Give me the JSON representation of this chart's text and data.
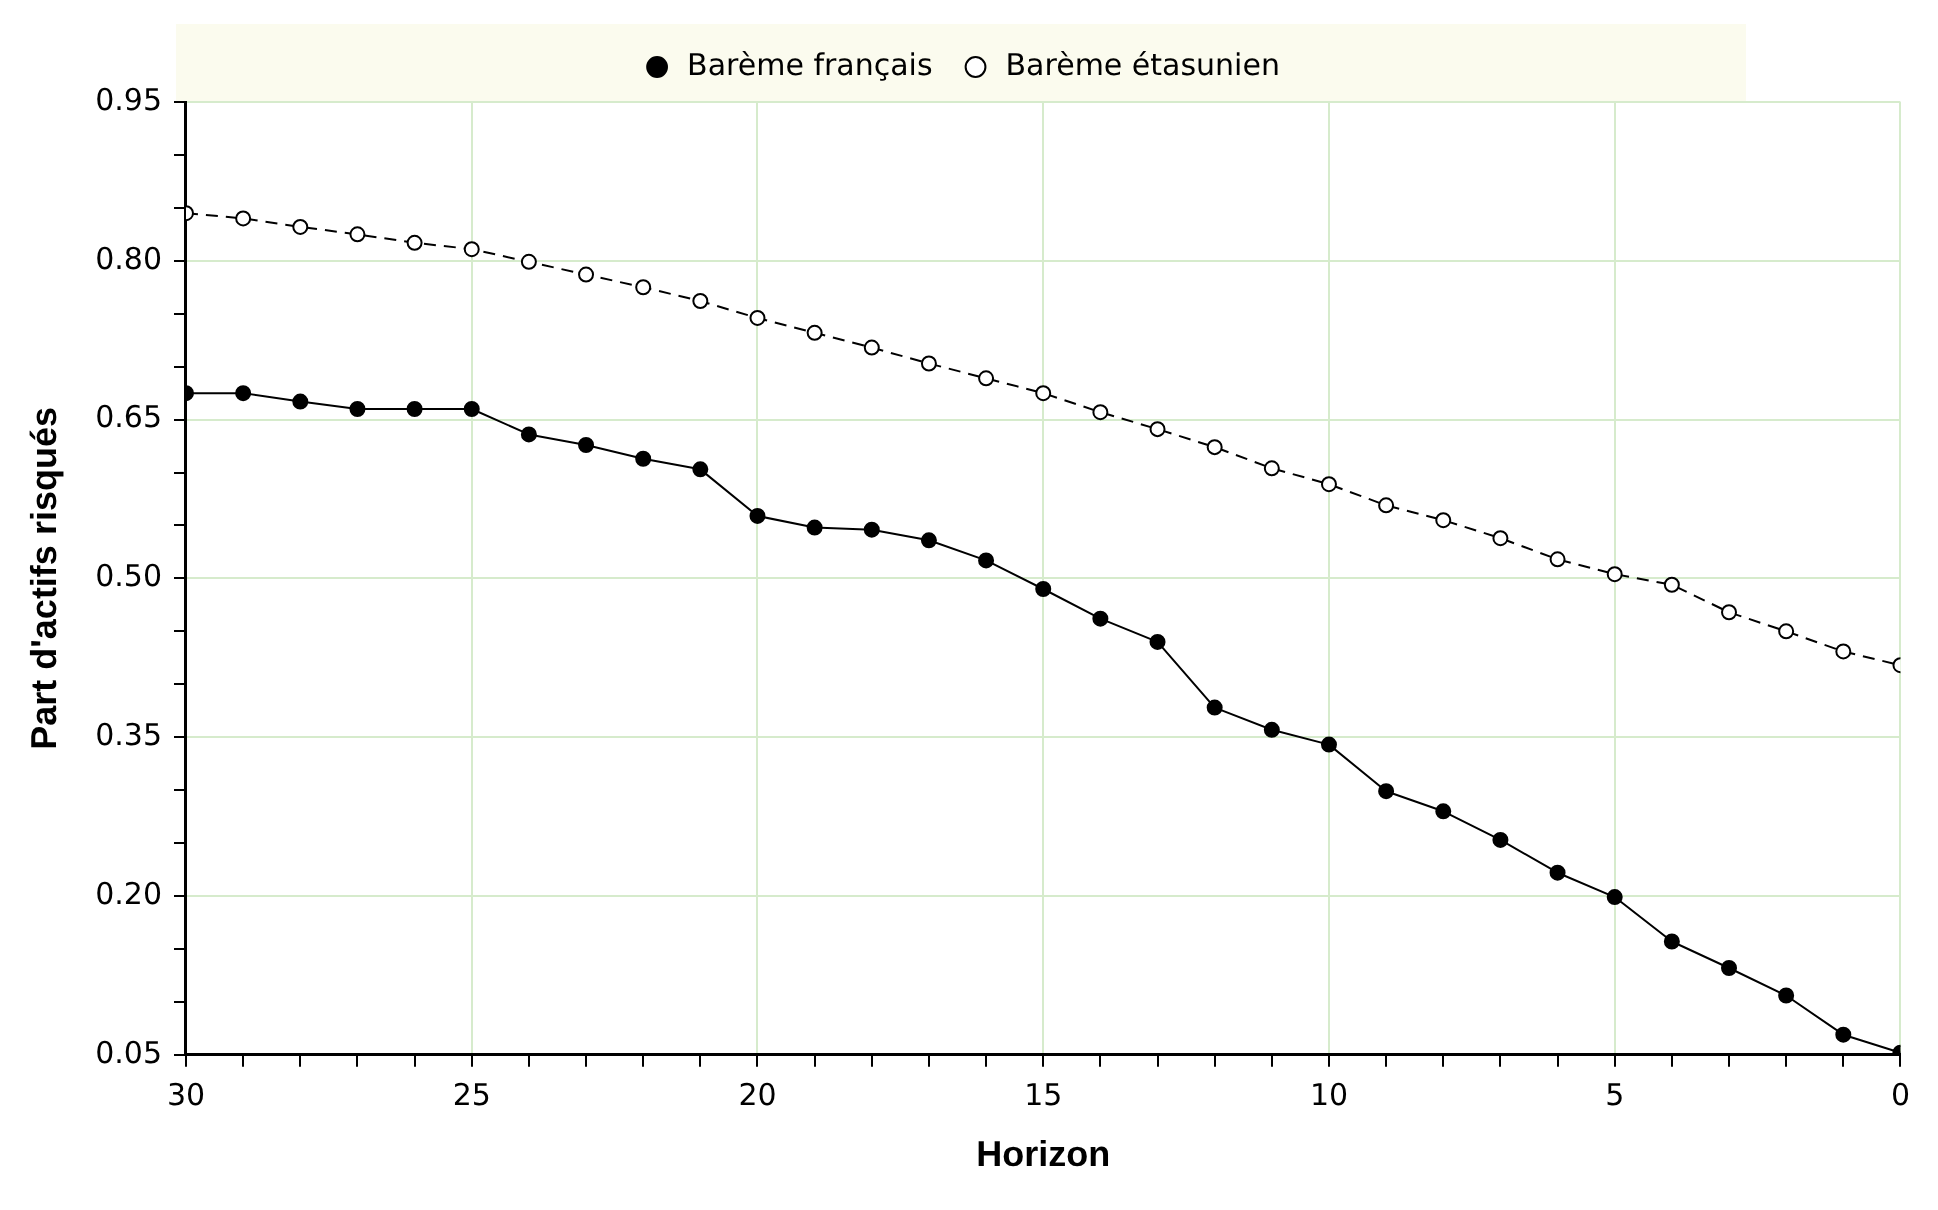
{
  "chart_data": {
    "type": "line",
    "xlabel": "Horizon",
    "ylabel": "Part d'actifs risqués",
    "x": [
      30,
      29,
      28,
      27,
      26,
      25,
      24,
      23,
      22,
      21,
      20,
      19,
      18,
      17,
      16,
      15,
      14,
      13,
      12,
      11,
      10,
      9,
      8,
      7,
      6,
      5,
      4,
      3,
      2,
      1,
      0
    ],
    "series": [
      {
        "name": "Barème français",
        "color": "#000000",
        "line_style": "solid",
        "values": [
          0.675,
          0.675,
          0.667,
          0.66,
          0.66,
          0.66,
          0.636,
          0.626,
          0.613,
          0.603,
          0.559,
          0.548,
          0.546,
          0.536,
          0.517,
          0.49,
          0.462,
          0.44,
          0.378,
          0.357,
          0.343,
          0.299,
          0.28,
          0.253,
          0.222,
          0.199,
          0.157,
          0.132,
          0.106,
          0.069,
          0.052
        ]
      },
      {
        "name": "Barème étasunien",
        "color": "#000000",
        "line_style": "dashed",
        "values": [
          0.845,
          0.84,
          0.832,
          0.825,
          0.817,
          0.811,
          0.799,
          0.787,
          0.775,
          0.762,
          0.746,
          0.732,
          0.718,
          0.703,
          0.689,
          0.675,
          0.657,
          0.641,
          0.624,
          0.604,
          0.589,
          0.569,
          0.555,
          0.538,
          0.518,
          0.504,
          0.494,
          0.468,
          0.45,
          0.431,
          0.418
        ]
      }
    ],
    "xlim": [
      30,
      0
    ],
    "xticks": [
      30,
      {
        "value": 29,
        "label": null
      },
      {
        "value": 28,
        "label": null
      },
      {
        "value": 27,
        "label": null
      },
      {
        "value": 26,
        "label": null
      },
      25,
      {
        "value": 24,
        "label": null
      },
      {
        "value": 23,
        "label": null
      },
      {
        "value": 22,
        "label": null
      },
      {
        "value": 21,
        "label": null
      },
      20,
      {
        "value": 19,
        "label": null
      },
      {
        "value": 18,
        "label": null
      },
      {
        "value": 17,
        "label": null
      },
      {
        "value": 16,
        "label": null
      },
      15,
      {
        "value": 14,
        "label": null
      },
      {
        "value": 13,
        "label": null
      },
      {
        "value": 12,
        "label": null
      },
      {
        "value": 11,
        "label": null
      },
      10,
      {
        "value": 9,
        "label": null
      },
      {
        "value": 8,
        "label": null
      },
      {
        "value": 7,
        "label": null
      },
      {
        "value": 6,
        "label": null
      },
      5,
      {
        "value": 4,
        "label": null
      },
      {
        "value": 3,
        "label": null
      },
      {
        "value": 2,
        "label": null
      },
      {
        "value": 1,
        "label": null
      },
      0
    ],
    "ylim": [
      0.05,
      0.95
    ],
    "yticks": [
      {
        "value": 0.05,
        "label": "0.05"
      },
      {
        "value": 0.1,
        "label": null
      },
      {
        "value": 0.15,
        "label": null
      },
      {
        "value": 0.2,
        "label": "0.20"
      },
      {
        "value": 0.25,
        "label": null
      },
      {
        "value": 0.3,
        "label": null
      },
      {
        "value": 0.35,
        "label": "0.35"
      },
      {
        "value": 0.4,
        "label": null
      },
      {
        "value": 0.45,
        "label": null
      },
      {
        "value": 0.5,
        "label": "0.50"
      },
      {
        "value": 0.55,
        "label": null
      },
      {
        "value": 0.6,
        "label": null
      },
      {
        "value": 0.65,
        "label": "0.65"
      },
      {
        "value": 0.7,
        "label": null
      },
      {
        "value": 0.75,
        "label": null
      },
      {
        "value": 0.8,
        "label": "0.80"
      },
      {
        "value": 0.85,
        "label": null
      },
      {
        "value": 0.9,
        "label": null
      },
      {
        "value": 0.95,
        "label": "0.95"
      }
    ],
    "grid": true,
    "legend": "top",
    "marker": "circle"
  }
}
